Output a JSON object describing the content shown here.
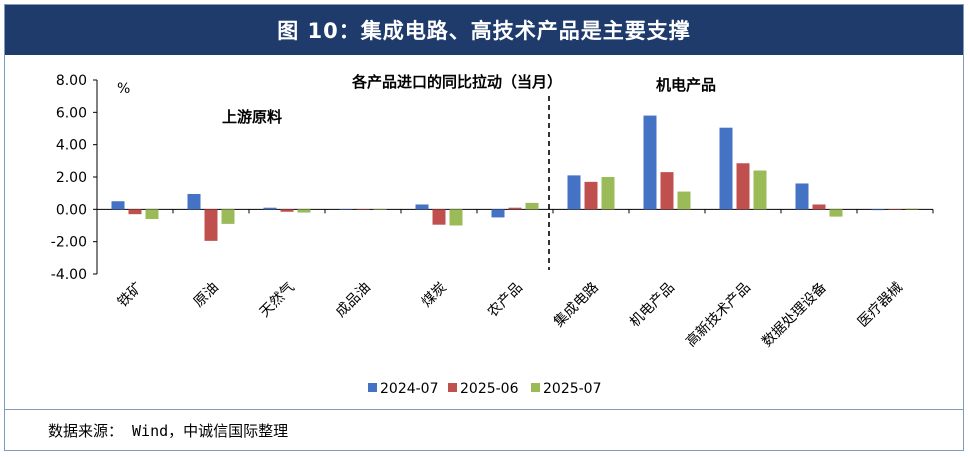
{
  "figure": {
    "title": "图 10：集成电路、高技术产品是主要支撑",
    "source": "数据来源： Wind，中诚信国际整理"
  },
  "colors": {
    "title_bg": "#1f3b6b",
    "series": [
      "#4472c4",
      "#c0504d",
      "#9bbb59"
    ]
  },
  "chart_data": {
    "type": "bar",
    "title": "各产品进口的同比拉动（当月）",
    "ylabel": "%",
    "ylim": [
      -4,
      8
    ],
    "yticks": [
      "8.00",
      "6.00",
      "4.00",
      "2.00",
      "0.00",
      "-2.00",
      "-4.00"
    ],
    "ytick_values": [
      8,
      6,
      4,
      2,
      0,
      -2,
      -4
    ],
    "categories": [
      "铁矿",
      "原油",
      "天然气",
      "成品油",
      "煤炭",
      "农产品",
      "集成电路",
      "机电产品",
      "高新技术产品",
      "数据处理设备",
      "医疗器械"
    ],
    "series": [
      {
        "name": "2024-07",
        "values": [
          0.5,
          0.95,
          0.1,
          0.0,
          0.3,
          -0.5,
          2.1,
          5.8,
          5.05,
          1.6,
          -0.05
        ]
      },
      {
        "name": "2025-06",
        "values": [
          -0.3,
          -1.95,
          -0.15,
          0.0,
          -0.95,
          0.1,
          1.7,
          2.3,
          2.85,
          0.3,
          0.0
        ]
      },
      {
        "name": "2025-07",
        "values": [
          -0.6,
          -0.9,
          -0.2,
          0.0,
          -1.0,
          0.4,
          2.0,
          1.1,
          2.4,
          -0.45,
          0.05
        ]
      }
    ],
    "annotations": {
      "left_group": "上游原料",
      "right_group": "机电产品"
    },
    "grid": false,
    "legend": "bottom"
  }
}
